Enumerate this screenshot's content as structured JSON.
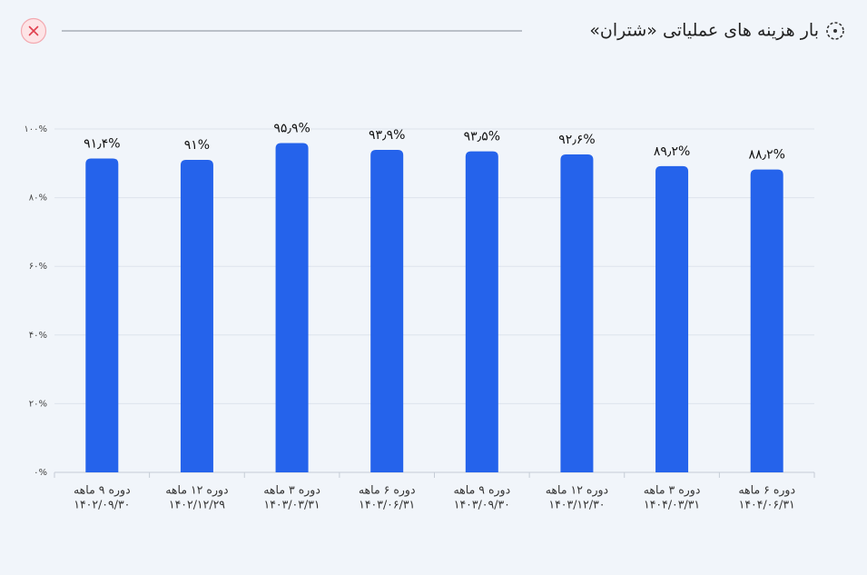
{
  "chart_data": {
    "type": "bar",
    "title": "بار هزینه های عملیاتی «شتران»",
    "categories": [
      [
        "دوره ۹ ماهه",
        "۱۴۰۲/۰۹/۳۰"
      ],
      [
        "دوره ۱۲ ماهه",
        "۱۴۰۲/۱۲/۲۹"
      ],
      [
        "دوره ۳ ماهه",
        "۱۴۰۳/۰۳/۳۱"
      ],
      [
        "دوره ۶ ماهه",
        "۱۴۰۳/۰۶/۳۱"
      ],
      [
        "دوره ۹ ماهه",
        "۱۴۰۳/۰۹/۳۰"
      ],
      [
        "دوره ۱۲ ماهه",
        "۱۴۰۳/۱۲/۳۰"
      ],
      [
        "دوره ۳ ماهه",
        "۱۴۰۴/۰۳/۳۱"
      ],
      [
        "دوره ۶ ماهه",
        "۱۴۰۴/۰۶/۳۱"
      ]
    ],
    "values": [
      91.4,
      91,
      95.9,
      93.9,
      93.5,
      92.6,
      89.2,
      88.2
    ],
    "value_labels": [
      "۹۱٫۴%",
      "۹۱%",
      "۹۵٫۹%",
      "۹۳٫۹%",
      "۹۳٫۵%",
      "۹۲٫۶%",
      "۸۹٫۲%",
      "۸۸٫۲%"
    ],
    "color": "#2563eb",
    "ylim": [
      0,
      100
    ],
    "yticks": [
      {
        "value": 0,
        "label": "۰%"
      },
      {
        "value": 20,
        "label": "۲۰%"
      },
      {
        "value": 40,
        "label": "۴۰%"
      },
      {
        "value": 60,
        "label": "۶۰%"
      },
      {
        "value": 80,
        "label": "۸۰%"
      },
      {
        "value": 100,
        "label": "۱۰۰%"
      }
    ],
    "grid": true
  }
}
